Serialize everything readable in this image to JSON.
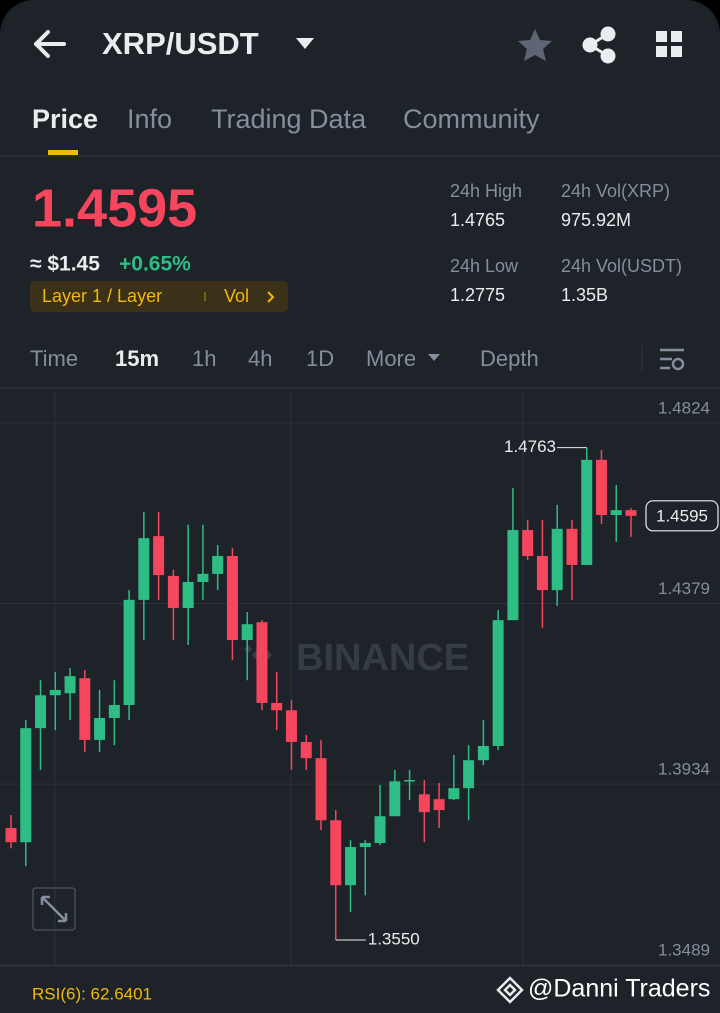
{
  "header": {
    "title": "XRP/USDT"
  },
  "tabs": [
    "Price",
    "Info",
    "Trading Data",
    "Community"
  ],
  "ticker": {
    "last": "1.4595",
    "usd": "≈ $1.45",
    "change": "+0.65%",
    "tag": "Layer 1 / Layer",
    "tag_vol": "Vol",
    "stats": [
      {
        "label": "24h High",
        "value": "1.4765"
      },
      {
        "label": "24h Vol(XRP)",
        "value": "975.92M"
      },
      {
        "label": "24h Low",
        "value": "1.2775"
      },
      {
        "label": "24h Vol(USDT)",
        "value": "1.35B"
      }
    ]
  },
  "intervals": [
    "Time",
    "15m",
    "1h",
    "4h",
    "1D",
    "More",
    "Depth"
  ],
  "chart_data": {
    "type": "candlestick",
    "open": [
      1.3826,
      1.3791,
      1.4072,
      1.4153,
      1.4158,
      1.4195,
      1.4043,
      1.4097,
      1.4129,
      1.4388,
      1.4545,
      1.4447,
      1.4368,
      1.4432,
      1.4452,
      1.4496,
      1.4289,
      1.4333,
      1.4134,
      1.4116,
      1.4038,
      1.3998,
      1.3845,
      1.3685,
      1.3779,
      1.3789,
      1.3855,
      1.3941,
      1.3909,
      1.3897,
      1.3897,
      1.3924,
      1.3993,
      1.4028,
      1.4338,
      1.456,
      1.4496,
      1.4412,
      1.4563,
      1.4474,
      1.4733,
      1.4597,
      1.4609
    ],
    "high": [
      1.3858,
      1.4092,
      1.419,
      1.421,
      1.422,
      1.4215,
      1.4166,
      1.419,
      1.4412,
      1.4605,
      1.4605,
      1.4462,
      1.4573,
      1.4573,
      1.4523,
      1.4516,
      1.4358,
      1.4338,
      1.421,
      1.4141,
      1.4055,
      1.4043,
      1.387,
      1.3796,
      1.3796,
      1.3932,
      1.3969,
      1.3969,
      1.3944,
      1.3937,
      1.4006,
      1.403,
      1.4092,
      1.4363,
      1.4664,
      1.4585,
      1.4585,
      1.4622,
      1.4585,
      1.4763,
      1.4757,
      1.4671,
      1.4614
    ],
    "low": [
      1.3776,
      1.3732,
      1.3969,
      1.4067,
      1.4092,
      1.4013,
      1.4013,
      1.403,
      1.4092,
      1.4289,
      1.4388,
      1.4289,
      1.4277,
      1.4388,
      1.4412,
      1.424,
      1.419,
      1.4116,
      1.4067,
      1.3969,
      1.3969,
      1.3821,
      1.355,
      1.3619,
      1.366,
      1.3784,
      1.3855,
      1.3895,
      1.3791,
      1.3826,
      1.3895,
      1.3845,
      1.3981,
      1.4018,
      1.4338,
      1.4486,
      1.4319,
      1.4373,
      1.4388,
      1.4474,
      1.4575,
      1.4531,
      1.4543
    ],
    "close": [
      1.3791,
      1.4072,
      1.4153,
      1.4166,
      1.42,
      1.4043,
      1.4097,
      1.4129,
      1.4388,
      1.454,
      1.4449,
      1.4368,
      1.4432,
      1.4452,
      1.4496,
      1.4289,
      1.4328,
      1.4134,
      1.4116,
      1.4038,
      1.3998,
      1.3845,
      1.3685,
      1.3779,
      1.3789,
      1.3855,
      1.3941,
      1.3944,
      1.3865,
      1.387,
      1.3924,
      1.3993,
      1.4028,
      1.4338,
      1.456,
      1.4496,
      1.4412,
      1.4563,
      1.4474,
      1.4733,
      1.4597,
      1.4609,
      1.4595
    ],
    "up_color": "#2ebd85",
    "down_color": "#f6465d",
    "ylim": [
      1.3486,
      1.4905
    ],
    "yticks": [
      1.4824,
      1.4379,
      1.3934,
      1.3489
    ],
    "grid": true,
    "annotations": [
      {
        "label": "1.4763",
        "value": 1.4763,
        "kind": "high"
      },
      {
        "label": "1.3550",
        "value": 1.355,
        "kind": "low"
      }
    ]
  },
  "watermark": "BINANCE",
  "indicator": "RSI(6): 62.6401",
  "credit": "@Danni Traders"
}
